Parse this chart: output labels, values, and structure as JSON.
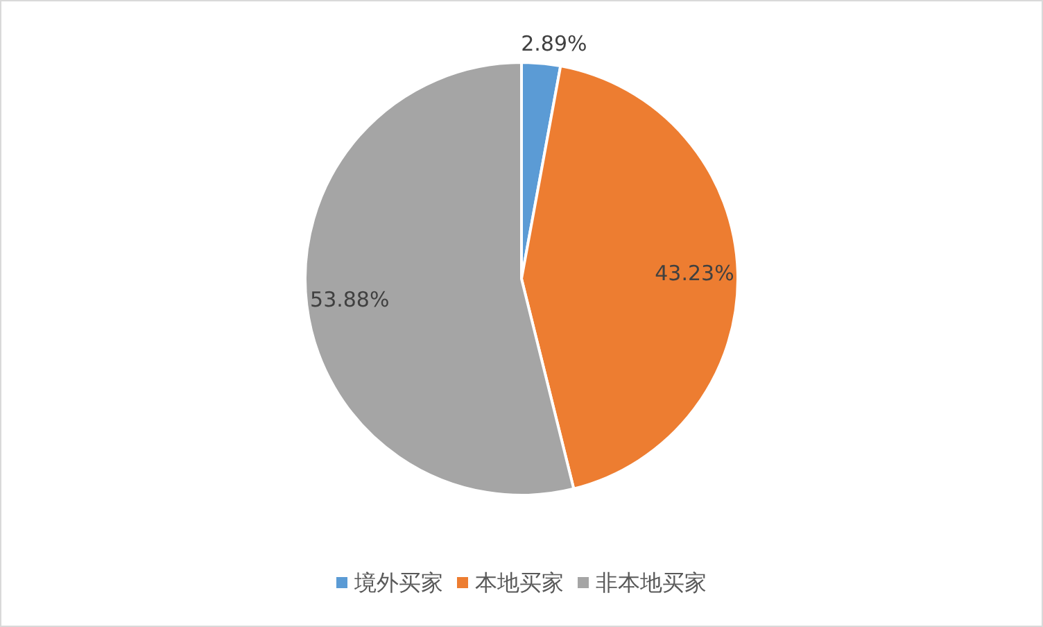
{
  "chart_data": {
    "type": "pie",
    "categories": [
      "境外买家",
      "本地买家",
      "非本地买家"
    ],
    "values": [
      2.89,
      43.23,
      53.88
    ],
    "colors": [
      "#5b9bd5",
      "#ed7d31",
      "#a5a5a5"
    ],
    "value_labels": [
      "2.89%",
      "43.23%",
      "53.88%"
    ],
    "legend": "bottom"
  }
}
